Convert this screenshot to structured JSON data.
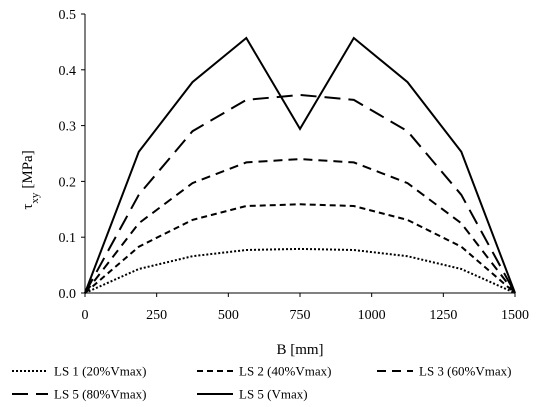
{
  "chart_data": {
    "type": "line",
    "x": [
      0,
      187.5,
      375,
      562.5,
      750,
      937.5,
      1125,
      1312.5,
      1500
    ],
    "series": [
      {
        "name": "LS 1 (20%Vmax)",
        "dash": "dotted",
        "values": [
          0.0,
          0.043,
          0.066,
          0.077,
          0.079,
          0.077,
          0.066,
          0.043,
          0.0
        ]
      },
      {
        "name": "LS 2 (40%Vmax)",
        "dash": "short-dash",
        "values": [
          0.0,
          0.083,
          0.131,
          0.156,
          0.159,
          0.156,
          0.131,
          0.083,
          0.0
        ]
      },
      {
        "name": "LS 3 (60%Vmax)",
        "dash": "medium-dash",
        "values": [
          0.0,
          0.125,
          0.197,
          0.234,
          0.24,
          0.234,
          0.197,
          0.125,
          0.0
        ]
      },
      {
        "name": "LS 5 (80%Vmax)",
        "dash": "long-dash",
        "values": [
          0.0,
          0.176,
          0.29,
          0.346,
          0.355,
          0.346,
          0.29,
          0.176,
          0.0
        ]
      },
      {
        "name": "LS 5 (Vmax)",
        "dash": "solid",
        "values": [
          0.0,
          0.253,
          0.378,
          0.457,
          0.294,
          0.457,
          0.378,
          0.253,
          0.0
        ]
      }
    ],
    "xlabel": "B [mm]",
    "ylabel": "τxy [MPa]",
    "ylabel_main": "τ",
    "ylabel_sub": "xy",
    "ylabel_unit": "[MPa]",
    "xlim": [
      0,
      1500
    ],
    "ylim": [
      0,
      0.5
    ],
    "xticks": [
      "0",
      "250",
      "500",
      "750",
      "1000",
      "1250",
      "1500"
    ],
    "yticks": [
      "0.0",
      "0.1",
      "0.2",
      "0.3",
      "0.4",
      "0.5"
    ],
    "grid": false,
    "legend_position": "bottom",
    "line_color": "#000000"
  }
}
